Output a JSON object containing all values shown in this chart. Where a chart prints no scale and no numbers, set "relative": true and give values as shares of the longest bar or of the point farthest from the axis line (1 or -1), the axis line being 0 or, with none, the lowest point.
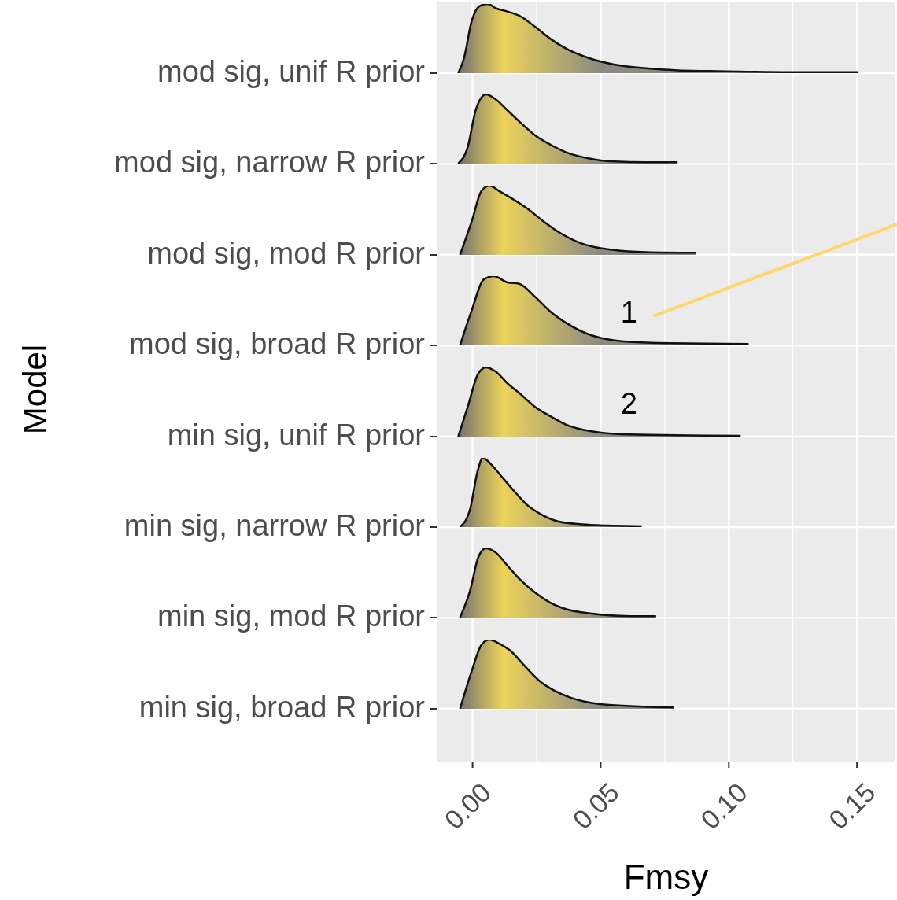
{
  "chart_data": [
    {
      "type": "area",
      "relative": true,
      "ylabel": "mod sig, unif R prior",
      "color": "#ecd35a",
      "xlim": [
        -0.014,
        0.165
      ],
      "x": [
        -0.0056,
        -0.0034,
        -0.0003,
        0.0028,
        0.0059,
        0.009,
        0.0136,
        0.0182,
        0.0244,
        0.0306,
        0.0367,
        0.046,
        0.0552,
        0.0676,
        0.08,
        0.0923,
        0.1077,
        0.1231,
        0.1506
      ],
      "values": [
        0,
        0.21,
        0.76,
        0.97,
        1,
        0.94,
        0.89,
        0.83,
        0.67,
        0.49,
        0.35,
        0.21,
        0.125,
        0.07,
        0.04,
        0.03,
        0.02,
        0.014,
        0.014
      ]
    },
    {
      "type": "area",
      "relative": true,
      "ylabel": "mod sig, narrow R prior",
      "color": "#ecd35a",
      "xlim": [
        -0.014,
        0.165
      ],
      "x": [
        -0.0056,
        -0.0019,
        0.0012,
        0.0052,
        0.009,
        0.0136,
        0.0182,
        0.0244,
        0.0306,
        0.0367,
        0.046,
        0.0552,
        0.0676,
        0.08
      ],
      "values": [
        0,
        0.24,
        0.77,
        1,
        0.93,
        0.77,
        0.61,
        0.41,
        0.27,
        0.16,
        0.07,
        0.03,
        0.02,
        0.02
      ]
    },
    {
      "type": "area",
      "relative": true,
      "ylabel": "mod sig, mod R prior",
      "color": "#ecd35a",
      "xlim": [
        -0.014,
        0.165
      ],
      "x": [
        -0.0049,
        -0.0003,
        0.0034,
        0.0065,
        0.0105,
        0.0151,
        0.0213,
        0.0275,
        0.0336,
        0.0429,
        0.0552,
        0.0676,
        0.0873
      ],
      "values": [
        0,
        0.49,
        0.92,
        1,
        0.92,
        0.82,
        0.67,
        0.49,
        0.33,
        0.16,
        0.07,
        0.04,
        0.03
      ]
    },
    {
      "type": "area",
      "relative": true,
      "ylabel": "mod sig, broad R prior",
      "color": "#ecd35a",
      "xlim": [
        -0.014,
        0.165
      ],
      "annotations": [
        "1"
      ],
      "x": [
        -0.0049,
        -0.0003,
        0.0043,
        0.0083,
        0.0136,
        0.0182,
        0.0244,
        0.0306,
        0.0367,
        0.046,
        0.0614,
        0.0769,
        0.1077
      ],
      "values": [
        0,
        0.51,
        0.95,
        1,
        0.91,
        0.89,
        0.7,
        0.48,
        0.32,
        0.15,
        0.05,
        0.03,
        0.02
      ]
    },
    {
      "type": "area",
      "relative": true,
      "ylabel": "min sig, unif R prior",
      "color": "#ecd35a",
      "xlim": [
        -0.014,
        0.165
      ],
      "annotations": [
        "2"
      ],
      "x": [
        -0.0056,
        -0.0019,
        0.0022,
        0.0052,
        0.009,
        0.0136,
        0.0182,
        0.0244,
        0.0306,
        0.0367,
        0.046,
        0.0614,
        0.1046
      ],
      "values": [
        0,
        0.43,
        0.91,
        1,
        0.94,
        0.77,
        0.63,
        0.43,
        0.29,
        0.17,
        0.08,
        0.03,
        0.01
      ]
    },
    {
      "type": "area",
      "relative": true,
      "ylabel": "min sig, narrow R prior",
      "color": "#ecd35a",
      "xlim": [
        -0.014,
        0.165
      ],
      "x": [
        -0.0049,
        -0.0009,
        0.0019,
        0.004,
        0.0074,
        0.012,
        0.0167,
        0.0213,
        0.0275,
        0.0336,
        0.0429,
        0.0552,
        0.066
      ],
      "values": [
        0,
        0.27,
        0.8,
        1,
        0.9,
        0.7,
        0.5,
        0.32,
        0.17,
        0.08,
        0.04,
        0.02,
        0.01
      ]
    },
    {
      "type": "area",
      "relative": true,
      "ylabel": "min sig, mod R prior",
      "color": "#ecd35a",
      "xlim": [
        -0.014,
        0.165
      ],
      "x": [
        -0.0049,
        -0.0009,
        0.0022,
        0.0052,
        0.009,
        0.0136,
        0.0182,
        0.0244,
        0.0306,
        0.0367,
        0.046,
        0.0614,
        0.0716
      ],
      "values": [
        0,
        0.4,
        0.87,
        1,
        0.94,
        0.75,
        0.56,
        0.36,
        0.21,
        0.12,
        0.06,
        0.02,
        0.02
      ]
    },
    {
      "type": "area",
      "relative": true,
      "ylabel": "min sig, broad R prior",
      "color": "#ecd35a",
      "xlim": [
        -0.014,
        0.165
      ],
      "xticks": [
        {
          "value": 0,
          "label": "0.00"
        },
        0.05,
        {
          "value": 0.1,
          "label": "0.10"
        },
        0.15
      ],
      "xlabel": "Fmsy",
      "grid": true,
      "tick_labels": "x",
      "annotations": [
        "Model"
      ],
      "x": [
        -0.0049,
        -0.0003,
        0.0034,
        0.0065,
        0.0105,
        0.0151,
        0.0198,
        0.0259,
        0.0321,
        0.0383,
        0.0491,
        0.0614,
        0.0784
      ],
      "values": [
        0,
        0.55,
        0.92,
        1,
        0.94,
        0.83,
        0.64,
        0.41,
        0.26,
        0.16,
        0.07,
        0.04,
        0.02
      ]
    }
  ]
}
